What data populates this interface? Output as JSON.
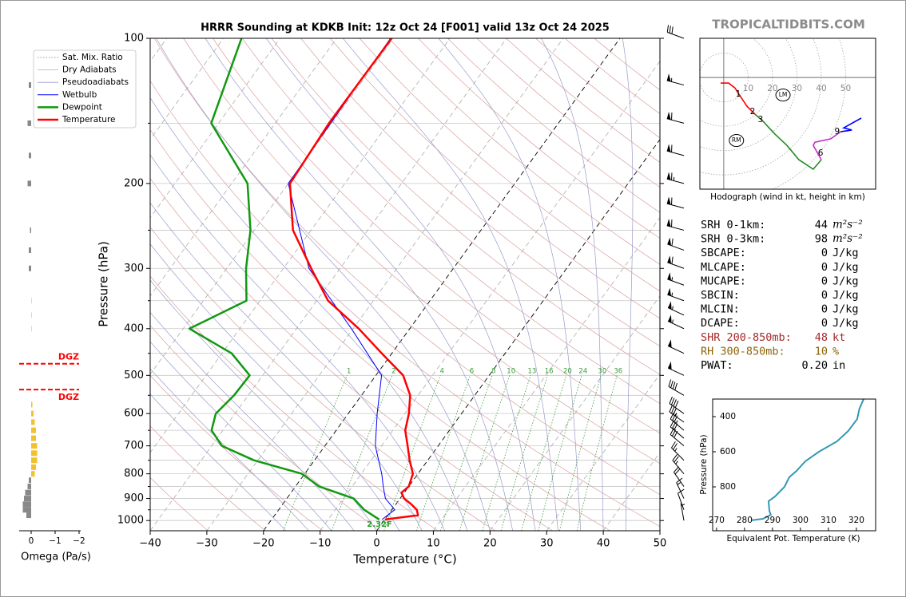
{
  "site": "TROPICALTIDBITS.COM",
  "parameters": [
    {
      "label": "SRH 0-1km:",
      "value": "44",
      "unit": "m²s⁻²",
      "color": "#000000"
    },
    {
      "label": "SRH 0-3km:",
      "value": "98",
      "unit": "m²s⁻²",
      "color": "#000000"
    },
    {
      "label": "SBCAPE:",
      "value": "0",
      "unit": "J/kg",
      "color": "#000000"
    },
    {
      "label": "MLCAPE:",
      "value": "0",
      "unit": "J/kg",
      "color": "#000000"
    },
    {
      "label": "MUCAPE:",
      "value": "0",
      "unit": "J/kg",
      "color": "#000000"
    },
    {
      "label": "SBCIN:",
      "value": "0",
      "unit": "J/kg",
      "color": "#000000"
    },
    {
      "label": "MLCIN:",
      "value": "0",
      "unit": "J/kg",
      "color": "#000000"
    },
    {
      "label": "DCAPE:",
      "value": "0",
      "unit": "J/kg",
      "color": "#000000"
    },
    {
      "label": "SHR 200-850mb:",
      "value": "48",
      "unit": "kt",
      "color": "#a52a2a"
    },
    {
      "label": "RH 300-850mb:",
      "value": "10",
      "unit": "%",
      "color": "#8b6508"
    },
    {
      "label": "PWAT:",
      "value": "0.20",
      "unit": "in",
      "color": "#000000"
    }
  ],
  "chart_data": [
    {
      "type": "skewt",
      "title": "HRRR Sounding at KDKB Init: 12z Oct 24 [F001] valid 13z Oct 24 2025",
      "xlabel": "Temperature (°C)",
      "ylabel": "Pressure (hPa)",
      "xlim": [
        -40,
        50
      ],
      "ylim": [
        100,
        1050
      ],
      "log_y": true,
      "xticks": [
        {
          "value": -40,
          "label": "−40"
        },
        {
          "value": -30,
          "label": "−30"
        },
        {
          "value": -20,
          "label": "−20"
        },
        {
          "value": -10,
          "label": "−10"
        },
        0,
        10,
        20,
        30,
        40,
        50
      ],
      "yticks": [
        100,
        200,
        300,
        400,
        500,
        600,
        700,
        800,
        900,
        1000
      ],
      "y_minor_ticks": [
        150,
        250,
        350,
        450,
        550,
        650,
        750,
        850,
        950
      ],
      "reference_lines": [
        {
          "name": "Sat. Mix. Ratio",
          "color": "#3a9a3a",
          "values": [
            1,
            2,
            4,
            6,
            8,
            10,
            13,
            16,
            20,
            24,
            30,
            36
          ]
        },
        {
          "name": "Dry Adiabats",
          "color": "#d9a0a0"
        },
        {
          "name": "Pseudoadiabats",
          "color": "#9a9acc"
        }
      ],
      "series": [
        {
          "name": "Wetbulb",
          "color": "#0000ff",
          "pressure": [
            100,
            200,
            300,
            400,
            500,
            600,
            700,
            800,
            850,
            900,
            950,
            995
          ],
          "values": [
            -60.5,
            -60,
            -45.5,
            -30.3,
            -19,
            -14.9,
            -11.1,
            -6.4,
            -4.5,
            -2.6,
            0.5,
            -0.5
          ]
        },
        {
          "name": "Dewpoint",
          "color": "#119911",
          "pressure": [
            100,
            150,
            200,
            250,
            300,
            350,
            400,
            450,
            500,
            550,
            600,
            650,
            700,
            750,
            800,
            850,
            900,
            950,
            995
          ],
          "values": [
            -86.8,
            -81.3,
            -67.2,
            -60.7,
            -56.6,
            -52.4,
            -58.9,
            -48.3,
            -42.3,
            -42.5,
            -43.4,
            -42,
            -38.2,
            -30.7,
            -20.5,
            -15.8,
            -8.2,
            -4.9,
            -1
          ]
        },
        {
          "name": "Temperature",
          "color": "#ff0000",
          "pressure": [
            100,
            150,
            200,
            250,
            300,
            350,
            400,
            450,
            500,
            550,
            600,
            650,
            700,
            750,
            800,
            850,
            875,
            900,
            925,
            950,
            975,
            995
          ],
          "values": [
            -60.3,
            -60.5,
            -59.7,
            -53.2,
            -45.1,
            -38,
            -29,
            -21.8,
            -15.2,
            -11.4,
            -9.3,
            -7.8,
            -5.4,
            -3.2,
            -0.9,
            0,
            -0.5,
            0.7,
            2.7,
            4.4,
            5.3,
            0
          ]
        }
      ],
      "winds": {
        "pressure": [
          100,
          125,
          150,
          175,
          200,
          225,
          250,
          275,
          300,
          325,
          350,
          375,
          400,
          450,
          500,
          550,
          600,
          625,
          650,
          675,
          700,
          750,
          800,
          850,
          900,
          950,
          1000
        ],
        "direction": [
          290,
          285,
          285,
          285,
          285,
          285,
          285,
          290,
          290,
          290,
          290,
          295,
          295,
          295,
          295,
          300,
          305,
          305,
          310,
          310,
          310,
          315,
          320,
          325,
          335,
          340,
          350
        ],
        "speed": [
          30,
          55,
          60,
          60,
          65,
          60,
          60,
          60,
          60,
          55,
          55,
          55,
          55,
          50,
          50,
          40,
          40,
          35,
          35,
          30,
          30,
          25,
          25,
          20,
          15,
          10,
          5
        ]
      },
      "surface_label": "2.32F"
    },
    {
      "type": "hodograph",
      "caption": "Hodograph (wind in kt, height in km)",
      "xlim": [
        -9.8,
        62.3
      ],
      "ylim": [
        -45.9,
        16.1
      ],
      "rings": [
        10,
        20,
        30,
        40,
        50
      ],
      "series": [
        {
          "color": "#ff0000",
          "u": [
            -1.3,
            2,
            4.6,
            6.9,
            9.5,
            12.8
          ],
          "v": [
            -2.3,
            -2.3,
            -4.3,
            -7.9,
            -11.8,
            -15.1
          ]
        },
        {
          "color": "#228b22",
          "u": [
            12.8,
            16.1,
            21,
            25.9,
            30.8,
            36.7,
            40
          ],
          "v": [
            -15.1,
            -18,
            -23.3,
            -27.9,
            -33.8,
            -37.7,
            -33.8
          ]
        },
        {
          "color": "#c030c0",
          "u": [
            40,
            36.7,
            37.4,
            43.9,
            47.9
          ],
          "v": [
            -33.8,
            -27.9,
            -26.6,
            -25.2,
            -22.3
          ]
        },
        {
          "color": "#0000ff",
          "u": [
            47.9,
            52.5,
            49.2,
            56.4
          ],
          "v": [
            -22.3,
            -21.6,
            -20.7,
            -16.7
          ]
        }
      ],
      "height_labels": [
        {
          "label": "1",
          "u": 6.9,
          "v": -7.9
        },
        {
          "label": "2",
          "u": 12.8,
          "v": -15.1
        },
        {
          "label": "3",
          "u": 16.1,
          "v": -18.4
        },
        {
          "label": "6",
          "u": 40.7,
          "v": -32.1
        },
        {
          "label": "9",
          "u": 47.5,
          "v": -23.3
        }
      ],
      "storm_motion": [
        {
          "label": "RM",
          "u": 5.2,
          "v": -25.9
        },
        {
          "label": "LM",
          "u": 24.3,
          "v": -7.2
        }
      ]
    },
    {
      "type": "line",
      "xlabel": "Equivalent Pot. Temperature (K)",
      "ylabel": "Pressure (hPa)",
      "xlim": [
        268.6,
        326.9
      ],
      "ylim": [
        300,
        1050
      ],
      "xticks": [
        270,
        280,
        290,
        300,
        310,
        320
      ],
      "yticks": [
        400,
        600,
        800
      ],
      "color": "#3399b3",
      "x": [
        322.6,
        321.1,
        320.3,
        317.1,
        313.1,
        306.6,
        301.7,
        298.6,
        296,
        294.3,
        290.9,
        288.6,
        288.9,
        289.4,
        286.6,
        282.3
      ],
      "y": [
        300,
        355,
        414,
        482,
        541,
        600,
        655,
        709,
        745,
        800,
        855,
        882,
        936,
        959,
        982,
        991
      ]
    },
    {
      "type": "bar",
      "xlabel": "Omega (Pa/s)",
      "xlim": [
        0.5,
        -2
      ],
      "xticks": [
        0,
        {
          "value": -1,
          "label": "−1"
        },
        {
          "value": -2,
          "label": "−2"
        }
      ],
      "pressure": [
        125,
        150,
        175,
        200,
        250,
        275,
        300,
        350,
        375,
        400,
        575,
        600,
        625,
        650,
        675,
        700,
        725,
        750,
        775,
        800,
        825,
        850,
        875,
        900,
        925,
        950,
        975
      ],
      "values": [
        0.1,
        0.15,
        0.1,
        0.15,
        0.05,
        0.1,
        0.1,
        -0.02,
        -0.02,
        -0.02,
        -0.05,
        -0.1,
        -0.15,
        -0.2,
        -0.2,
        -0.25,
        -0.25,
        -0.25,
        -0.2,
        -0.15,
        0.1,
        0.15,
        0.25,
        0.3,
        0.35,
        0.35,
        0.2
      ],
      "colors": [
        "#888888",
        "#888888",
        "#888888",
        "#888888",
        "#888888",
        "#888888",
        "#888888",
        "#f2c12e",
        "#f2c12e",
        "#f2c12e",
        "#f2c12e",
        "#f2c12e",
        "#f2c12e",
        "#f2c12e",
        "#f2c12e",
        "#f2c12e",
        "#f2c12e",
        "#f2c12e",
        "#f2c12e",
        "#f2c12e",
        "#888888",
        "#888888",
        "#888888",
        "#888888",
        "#888888",
        "#888888",
        "#888888"
      ],
      "dgz": {
        "label": "DGZ",
        "pressure": [
          473,
          535
        ]
      }
    }
  ]
}
